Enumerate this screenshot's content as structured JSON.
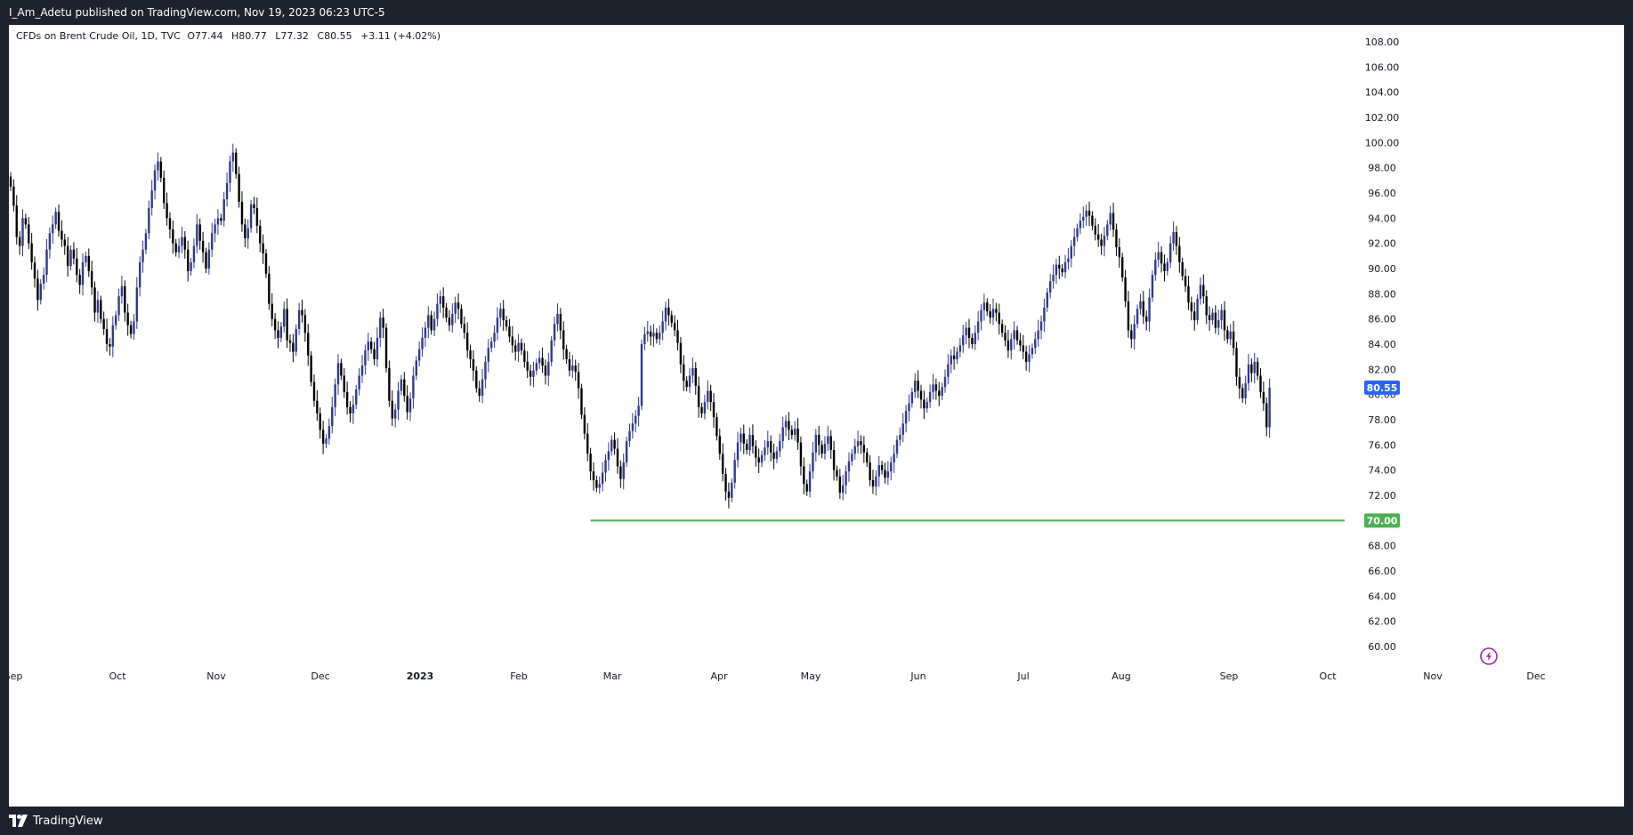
{
  "header": {
    "published": "I_Am_Adetu published on TradingView.com, Nov 19, 2023 06:23 UTC-5"
  },
  "footer": {
    "brand": "TradingView"
  },
  "legend": {
    "symbol": "CFDs on Brent Crude Oil, 1D, TVC",
    "open": "O77.44",
    "high": "H80.77",
    "low": "L77.32",
    "close": "C80.55",
    "change": "+3.11 (+4.02%)"
  },
  "colors": {
    "up_candle": "#2e3a8c",
    "down_candle": "#000000",
    "support_line": "#4caf50",
    "price_label_bg": "#2962ff",
    "support_label_bg": "#4caf50",
    "axis_text": "#131722",
    "lightning_icon": "#9c27b0"
  },
  "icons": {
    "lightning": "lightning-icon",
    "logo": "tradingview-logo-icon"
  },
  "chart_data": {
    "type": "candlestick",
    "y_axis": {
      "ticks": [
        "108.00",
        "106.00",
        "104.00",
        "102.00",
        "100.00",
        "98.00",
        "96.00",
        "94.00",
        "92.00",
        "90.00",
        "88.00",
        "86.00",
        "84.00",
        "82.00",
        "80.00",
        "78.00",
        "76.00",
        "74.00",
        "72.00",
        "70.00",
        "68.00",
        "66.00",
        "64.00",
        "62.00",
        "60.00"
      ],
      "range": [
        59.0,
        109.0
      ]
    },
    "x_axis": {
      "labels": [
        "Sep",
        "Oct",
        "Nov",
        "Dec",
        "2023",
        "Feb",
        "Mar",
        "Apr",
        "May",
        "Jun",
        "Jul",
        "Aug",
        "Sep",
        "Oct",
        "Nov",
        "Dec"
      ],
      "bold": [
        "2023"
      ]
    },
    "current_price": "80.55",
    "support_level": {
      "value": 70.0,
      "label": "70.00",
      "start_month": "Mar"
    },
    "closes": [
      96.5,
      95.0,
      92.5,
      91.8,
      94.0,
      93.5,
      92.0,
      90.5,
      89.2,
      87.5,
      88.8,
      89.5,
      91.5,
      92.8,
      93.5,
      94.5,
      93.0,
      92.3,
      91.8,
      90.2,
      91.5,
      90.8,
      89.5,
      88.7,
      90.5,
      91.0,
      89.8,
      88.5,
      86.5,
      87.5,
      86.0,
      85.2,
      84.0,
      83.8,
      85.5,
      86.3,
      87.8,
      88.6,
      86.5,
      85.5,
      84.8,
      85.8,
      88.5,
      90.5,
      91.5,
      92.8,
      94.8,
      96.2,
      97.8,
      98.5,
      97.2,
      95.2,
      94.0,
      93.1,
      92.0,
      91.3,
      91.8,
      92.5,
      91.5,
      89.8,
      90.5,
      91.8,
      93.5,
      92.2,
      91.3,
      90.0,
      91.5,
      92.8,
      93.5,
      94.0,
      93.8,
      95.5,
      96.8,
      98.5,
      99.2,
      97.5,
      95.3,
      93.5,
      92.4,
      93.2,
      95.1,
      94.8,
      93.4,
      92.0,
      91.2,
      89.6,
      87.2,
      86.0,
      85.1,
      84.5,
      85.4,
      86.8,
      84.3,
      84.1,
      83.4,
      85.2,
      86.7,
      86.3,
      84.9,
      83.1,
      81.0,
      79.5,
      78.5,
      77.2,
      76.1,
      76.5,
      77.5,
      79.0,
      80.8,
      82.5,
      81.5,
      80.2,
      79.0,
      78.5,
      79.2,
      80.4,
      81.5,
      82.3,
      83.5,
      84.2,
      83.6,
      82.8,
      84.5,
      86.1,
      85.3,
      82.1,
      79.5,
      78.1,
      78.8,
      80.3,
      81.2,
      79.9,
      78.6,
      79.7,
      81.5,
      82.7,
      83.6,
      84.5,
      85.3,
      86.3,
      85.1,
      86.0,
      87.2,
      87.8,
      86.9,
      86.1,
      85.5,
      86.4,
      87.3,
      86.8,
      85.6,
      84.9,
      83.5,
      82.8,
      81.9,
      80.5,
      79.9,
      81.2,
      82.6,
      83.7,
      84.2,
      84.9,
      86.1,
      86.8,
      85.9,
      85.4,
      84.6,
      83.9,
      83.4,
      84.1,
      83.5,
      82.6,
      81.9,
      81.4,
      81.9,
      82.5,
      82.9,
      82.3,
      81.5,
      82.6,
      84.3,
      85.6,
      86.4,
      85.1,
      83.6,
      82.8,
      81.9,
      82.3,
      81.8,
      80.5,
      78.4,
      76.9,
      75.3,
      73.9,
      73.2,
      72.6,
      72.9,
      73.8,
      74.8,
      75.5,
      76.4,
      75.7,
      74.3,
      73.3,
      74.6,
      76.3,
      77.1,
      77.7,
      78.3,
      79.1,
      84.0,
      84.8,
      85.0,
      84.6,
      84.9,
      84.4,
      84.9,
      85.8,
      86.9,
      86.3,
      85.7,
      85.1,
      84.1,
      82.4,
      81.1,
      80.6,
      81.5,
      82.1,
      80.7,
      79.0,
      78.5,
      79.4,
      80.3,
      79.4,
      78.2,
      76.7,
      75.3,
      73.7,
      72.3,
      71.8,
      73.0,
      74.8,
      76.2,
      76.9,
      76.1,
      75.6,
      76.8,
      75.9,
      75.0,
      74.6,
      75.2,
      75.8,
      76.3,
      75.4,
      74.9,
      75.5,
      76.3,
      77.4,
      77.9,
      77.2,
      76.8,
      77.3,
      76.2,
      74.3,
      72.9,
      72.3,
      73.9,
      75.4,
      76.8,
      76.0,
      75.3,
      76.1,
      76.7,
      75.6,
      74.0,
      73.5,
      72.2,
      72.8,
      73.9,
      74.7,
      75.3,
      75.9,
      76.3,
      76.0,
      75.4,
      74.6,
      73.2,
      72.7,
      73.5,
      74.4,
      74.0,
      73.4,
      73.9,
      74.6,
      75.3,
      76.4,
      76.8,
      77.7,
      78.7,
      79.3,
      80.2,
      81.1,
      80.3,
      79.6,
      78.9,
      79.4,
      80.2,
      80.8,
      80.3,
      79.9,
      80.6,
      81.4,
      82.4,
      83.1,
      82.8,
      83.4,
      83.9,
      84.7,
      85.3,
      84.5,
      84.0,
      84.9,
      85.8,
      86.7,
      87.3,
      86.6,
      86.1,
      86.8,
      86.5,
      85.6,
      84.9,
      84.3,
      83.5,
      84.4,
      85.1,
      84.3,
      83.9,
      83.4,
      82.6,
      83.2,
      83.7,
      84.4,
      85.1,
      85.8,
      86.9,
      88.1,
      89.0,
      89.5,
      90.3,
      90.0,
      89.7,
      90.5,
      90.8,
      91.8,
      92.5,
      93.2,
      93.8,
      94.1,
      94.6,
      94.2,
      93.4,
      92.7,
      92.3,
      91.8,
      92.6,
      93.5,
      94.4,
      93.1,
      91.7,
      90.9,
      89.3,
      87.4,
      85.1,
      84.4,
      85.6,
      86.8,
      87.4,
      86.2,
      85.8,
      87.7,
      89.5,
      90.7,
      91.3,
      90.4,
      89.8,
      90.5,
      92.0,
      92.9,
      91.8,
      90.5,
      89.4,
      88.6,
      87.3,
      86.6,
      85.9,
      87.6,
      88.7,
      87.8,
      86.3,
      85.9,
      86.5,
      85.3,
      85.9,
      86.7,
      85.1,
      84.4,
      85.0,
      83.7,
      81.4,
      80.5,
      79.7,
      80.9,
      82.4,
      81.7,
      82.6,
      81.5,
      80.2,
      79.3,
      77.4,
      80.55
    ]
  }
}
